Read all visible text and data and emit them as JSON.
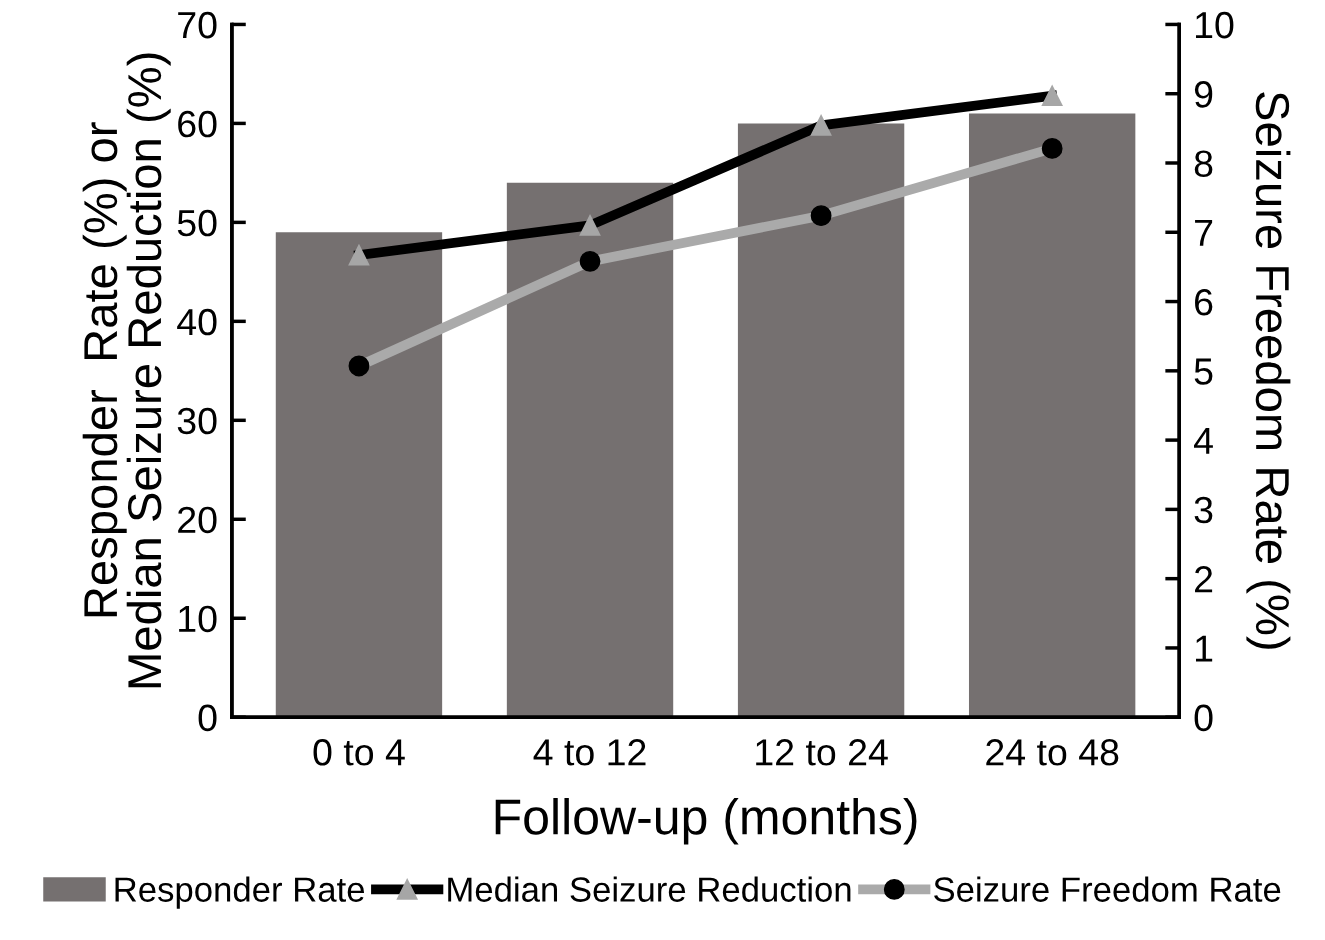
{
  "chart_data": {
    "type": "bar",
    "categories": [
      "0 to 4",
      "4 to 12",
      "12 to 24",
      "24 to 48"
    ],
    "xlabel": "Follow-up (months)",
    "ylabel": "Responder  Rate (%) or\nMedian Seizure Reduction (%)",
    "y2label": "Seizure Freedom Rate (%)",
    "ylim": [
      0,
      70
    ],
    "yticks": [
      0,
      10,
      20,
      30,
      40,
      50,
      60,
      70
    ],
    "y2lim": [
      0,
      10
    ],
    "y2ticks": [
      0,
      1,
      2,
      3,
      4,
      5,
      6,
      7,
      8,
      9,
      10
    ],
    "legend": "bottom",
    "grid": false,
    "series": [
      {
        "name": "Responder Rate",
        "color": "#757070",
        "values": [
          49,
          54,
          60,
          61
        ]
      },
      {
        "name": "Median Seizure Reduction",
        "type": "line",
        "color": "#000000",
        "marker": "triangle",
        "values": [
          46.7,
          49.7,
          59.8,
          62.8
        ]
      },
      {
        "name": "Seizure Freedom Rate",
        "type": "line",
        "axis": "y2",
        "color": "#aaaaaa",
        "marker": "circle",
        "values": [
          5.07,
          6.58,
          7.24,
          8.21
        ]
      }
    ]
  }
}
